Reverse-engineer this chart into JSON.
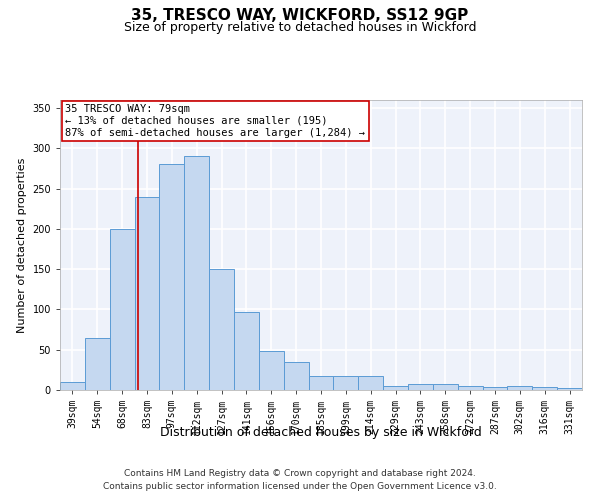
{
  "title1": "35, TRESCO WAY, WICKFORD, SS12 9GP",
  "title2": "Size of property relative to detached houses in Wickford",
  "xlabel": "Distribution of detached houses by size in Wickford",
  "ylabel": "Number of detached properties",
  "categories": [
    "39sqm",
    "54sqm",
    "68sqm",
    "83sqm",
    "97sqm",
    "112sqm",
    "127sqm",
    "141sqm",
    "156sqm",
    "170sqm",
    "185sqm",
    "199sqm",
    "214sqm",
    "229sqm",
    "243sqm",
    "258sqm",
    "272sqm",
    "287sqm",
    "302sqm",
    "316sqm",
    "331sqm"
  ],
  "values": [
    10,
    65,
    200,
    240,
    280,
    290,
    150,
    97,
    48,
    35,
    17,
    18,
    18,
    5,
    8,
    8,
    5,
    4,
    5,
    4,
    3
  ],
  "bar_color": "#c5d8f0",
  "bar_edge_color": "#5b9bd5",
  "background_color": "#eef2fa",
  "grid_color": "#ffffff",
  "annotation_text": "35 TRESCO WAY: 79sqm\n← 13% of detached houses are smaller (195)\n87% of semi-detached houses are larger (1,284) →",
  "annotation_box_color": "#ffffff",
  "annotation_box_edge": "#cc0000",
  "property_line_color": "#cc0000",
  "ylim": [
    0,
    360
  ],
  "yticks": [
    0,
    50,
    100,
    150,
    200,
    250,
    300,
    350
  ],
  "footer1": "Contains HM Land Registry data © Crown copyright and database right 2024.",
  "footer2": "Contains public sector information licensed under the Open Government Licence v3.0.",
  "title1_fontsize": 11,
  "title2_fontsize": 9,
  "xlabel_fontsize": 9,
  "ylabel_fontsize": 8,
  "tick_fontsize": 7,
  "annotation_fontsize": 7.5,
  "footer_fontsize": 6.5
}
